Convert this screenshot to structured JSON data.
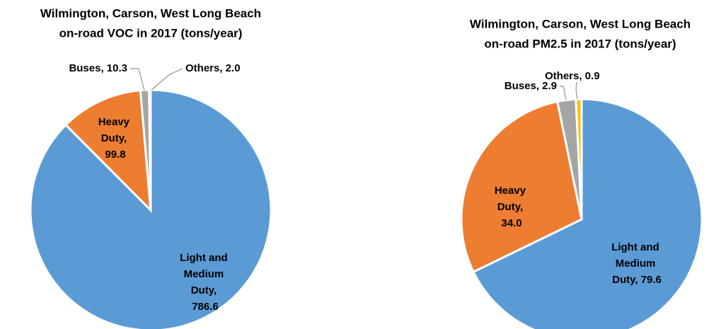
{
  "chart_data": [
    {
      "type": "pie",
      "title": [
        "Wilmington, Carson, West Long Beach",
        "on-road VOC in 2017 (tons/year)"
      ],
      "values": [
        786.6,
        99.8,
        10.3,
        2.0
      ],
      "value_labels": [
        "Light and Medium Duty, 786.6",
        "Heavy Duty, 99.8",
        "Buses, 10.3",
        "Others, 2.0"
      ],
      "colors": [
        "#5b9bd5",
        "#ed7d31",
        "#a5a5a5",
        "#ffc000"
      ]
    },
    {
      "type": "pie",
      "title": [
        "Wilmington, Carson, West Long Beach",
        "on-road PM2.5 in 2017 (tons/year)"
      ],
      "values": [
        79.6,
        34.0,
        2.9,
        0.9
      ],
      "value_labels": [
        "Light and Medium Duty, 79.6",
        "Heavy Duty, 34.0",
        "Buses, 2.9",
        "Others, 0.9"
      ],
      "colors": [
        "#5b9bd5",
        "#ed7d31",
        "#a5a5a5",
        "#ffc000"
      ]
    }
  ]
}
